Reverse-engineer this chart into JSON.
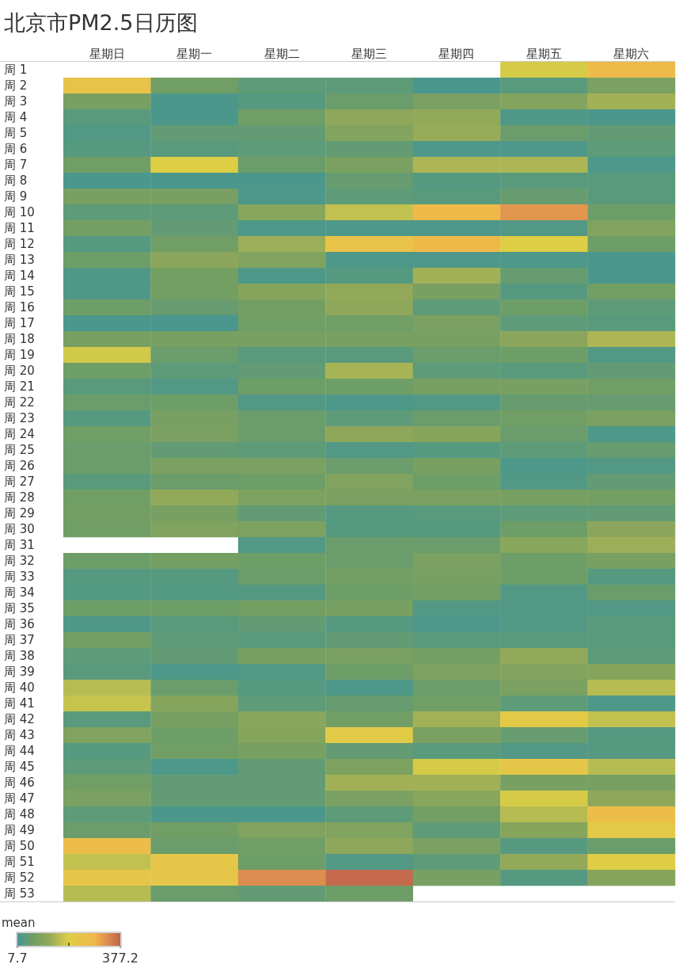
{
  "chart_data": {
    "type": "heatmap",
    "title": "北京市PM2.5日历图",
    "clabel": "mean",
    "categories": [
      "星期日",
      "星期一",
      "星期二",
      "星期三",
      "星期四",
      "星期五",
      "星期六"
    ],
    "y_categories": [
      "周 1",
      "周 2",
      "周 3",
      "周 4",
      "周 5",
      "周 6",
      "周 7",
      "周 8",
      "周 9",
      "周 10",
      "周 11",
      "周 12",
      "周 13",
      "周 14",
      "周 15",
      "周 16",
      "周 17",
      "周 18",
      "周 19",
      "周 20",
      "周 21",
      "周 22",
      "周 23",
      "周 24",
      "周 25",
      "周 26",
      "周 27",
      "周 28",
      "周 29",
      "周 30",
      "周 31",
      "周 32",
      "周 33",
      "周 34",
      "周 35",
      "周 36",
      "周 37",
      "周 38",
      "周 39",
      "周 40",
      "周 41",
      "周 42",
      "周 43",
      "周 44",
      "周 45",
      "周 46",
      "周 47",
      "周 48",
      "周 49",
      "周 50",
      "周 51",
      "周 52",
      "周 53"
    ],
    "cells": [
      [
        null,
        null,
        null,
        null,
        null,
        185,
        270
      ],
      [
        240,
        65,
        40,
        40,
        15,
        35,
        80
      ],
      [
        75,
        18,
        30,
        55,
        80,
        95,
        135
      ],
      [
        35,
        18,
        65,
        115,
        120,
        22,
        18
      ],
      [
        25,
        45,
        45,
        95,
        125,
        55,
        45
      ],
      [
        30,
        35,
        40,
        45,
        20,
        20,
        40
      ],
      [
        65,
        195,
        55,
        80,
        145,
        145,
        20
      ],
      [
        15,
        15,
        18,
        50,
        30,
        35,
        35
      ],
      [
        75,
        75,
        20,
        40,
        35,
        50,
        35
      ],
      [
        40,
        40,
        105,
        165,
        280,
        320,
        60
      ],
      [
        70,
        45,
        20,
        20,
        20,
        25,
        90
      ],
      [
        30,
        65,
        130,
        240,
        280,
        195,
        60
      ],
      [
        60,
        110,
        90,
        20,
        20,
        20,
        18
      ],
      [
        22,
        70,
        20,
        30,
        135,
        50,
        18
      ],
      [
        22,
        70,
        100,
        120,
        75,
        30,
        70
      ],
      [
        60,
        50,
        70,
        115,
        40,
        60,
        40
      ],
      [
        15,
        15,
        65,
        65,
        80,
        40,
        35
      ],
      [
        75,
        75,
        75,
        75,
        75,
        110,
        145
      ],
      [
        180,
        55,
        35,
        35,
        55,
        60,
        25
      ],
      [
        60,
        40,
        45,
        140,
        40,
        35,
        45
      ],
      [
        35,
        25,
        60,
        60,
        75,
        75,
        65
      ],
      [
        55,
        60,
        25,
        20,
        25,
        50,
        50
      ],
      [
        30,
        75,
        55,
        40,
        55,
        65,
        80
      ],
      [
        65,
        80,
        55,
        115,
        100,
        55,
        20
      ],
      [
        55,
        45,
        40,
        25,
        30,
        40,
        50
      ],
      [
        55,
        80,
        80,
        55,
        75,
        20,
        25
      ],
      [
        35,
        55,
        60,
        90,
        60,
        25,
        45
      ],
      [
        65,
        120,
        85,
        80,
        80,
        75,
        70
      ],
      [
        70,
        75,
        45,
        30,
        35,
        40,
        45
      ],
      [
        65,
        90,
        85,
        30,
        30,
        60,
        110
      ],
      [
        null,
        null,
        25,
        55,
        55,
        105,
        130
      ],
      [
        60,
        70,
        60,
        55,
        80,
        60,
        75
      ],
      [
        30,
        30,
        55,
        70,
        75,
        60,
        30
      ],
      [
        28,
        28,
        30,
        60,
        70,
        25,
        55
      ],
      [
        60,
        60,
        70,
        75,
        25,
        25,
        25
      ],
      [
        22,
        35,
        45,
        30,
        20,
        25,
        35
      ],
      [
        70,
        40,
        35,
        45,
        35,
        35,
        35
      ],
      [
        40,
        45,
        75,
        80,
        70,
        120,
        40
      ],
      [
        35,
        20,
        25,
        60,
        85,
        95,
        100
      ],
      [
        155,
        55,
        30,
        20,
        55,
        80,
        155
      ],
      [
        170,
        100,
        40,
        50,
        65,
        40,
        20
      ],
      [
        35,
        75,
        105,
        65,
        135,
        215,
        165
      ],
      [
        90,
        60,
        100,
        210,
        80,
        50,
        30
      ],
      [
        30,
        65,
        75,
        45,
        35,
        25,
        30
      ],
      [
        40,
        20,
        45,
        85,
        185,
        225,
        155
      ],
      [
        65,
        45,
        45,
        135,
        135,
        75,
        75
      ],
      [
        80,
        45,
        45,
        80,
        105,
        185,
        115
      ],
      [
        40,
        18,
        18,
        40,
        70,
        155,
        260
      ],
      [
        55,
        65,
        90,
        90,
        40,
        100,
        215
      ],
      [
        260,
        55,
        65,
        115,
        80,
        30,
        55
      ],
      [
        165,
        225,
        60,
        25,
        40,
        120,
        200
      ],
      [
        225,
        225,
        330,
        370,
        75,
        30,
        100
      ],
      [
        155,
        55,
        45,
        60,
        null,
        null,
        null
      ]
    ],
    "clim": [
      7.7,
      377.2
    ],
    "cticks": [
      7.7,
      {
        "value": 192.45,
        "label": null
      },
      377.2
    ]
  }
}
